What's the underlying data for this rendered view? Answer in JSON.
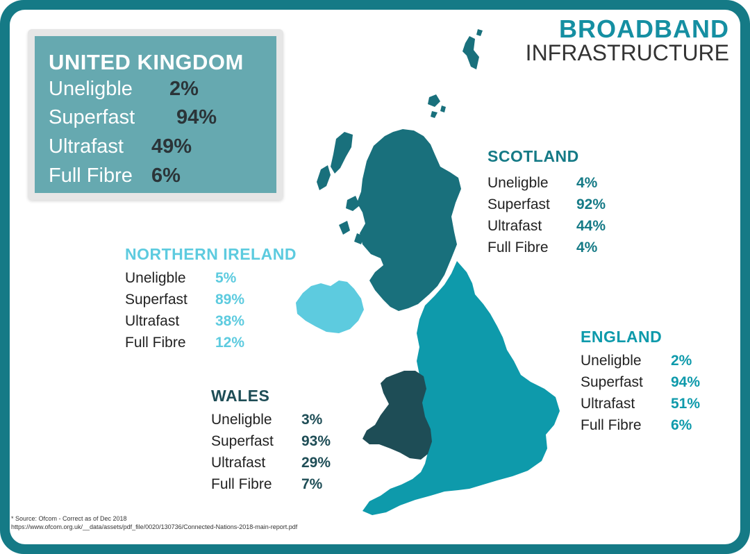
{
  "title": {
    "line1": "BROADBAND",
    "line2": "INFRASTRUCTURE"
  },
  "colors": {
    "frame": "#157a86",
    "scotland": "#19707c",
    "england": "#0e9aab",
    "wales": "#1e4d56",
    "northern_ireland": "#5dcbdf",
    "uk_box": "#66a9b0"
  },
  "united_kingdom": {
    "heading": "UNITED KINGDOM",
    "rows": [
      {
        "label": "Uneligble",
        "value": "2%"
      },
      {
        "label": "Superfast",
        "value": "94%"
      },
      {
        "label": "Ultrafast",
        "value": "49%"
      },
      {
        "label": "Full Fibre",
        "value": "6%"
      }
    ]
  },
  "scotland": {
    "heading": "SCOTLAND",
    "rows": [
      {
        "label": "Uneligble",
        "value": "4%"
      },
      {
        "label": "Superfast",
        "value": "92%"
      },
      {
        "label": "Ultrafast",
        "value": "44%"
      },
      {
        "label": "Full Fibre",
        "value": "4%"
      }
    ]
  },
  "northern_ireland": {
    "heading": "NORTHERN IRELAND",
    "rows": [
      {
        "label": "Uneligble",
        "value": "5%"
      },
      {
        "label": "Superfast",
        "value": "89%"
      },
      {
        "label": "Ultrafast",
        "value": "38%"
      },
      {
        "label": "Full Fibre",
        "value": "12%"
      }
    ]
  },
  "england": {
    "heading": "ENGLAND",
    "rows": [
      {
        "label": "Uneligble",
        "value": "2%"
      },
      {
        "label": "Superfast",
        "value": "94%"
      },
      {
        "label": "Ultrafast",
        "value": "51%"
      },
      {
        "label": "Full Fibre",
        "value": "6%"
      }
    ]
  },
  "wales": {
    "heading": "WALES",
    "rows": [
      {
        "label": "Uneligble",
        "value": "3%"
      },
      {
        "label": "Superfast",
        "value": "93%"
      },
      {
        "label": "Ultrafast",
        "value": "29%"
      },
      {
        "label": "Full Fibre",
        "value": "7%"
      }
    ]
  },
  "source": {
    "line1": "* Source: Ofcom - Correct as of Dec 2018",
    "line2": "https://www.ofcom.org.uk/__data/assets/pdf_file/0020/130736/Connected-Nations-2018-main-report.pdf"
  }
}
